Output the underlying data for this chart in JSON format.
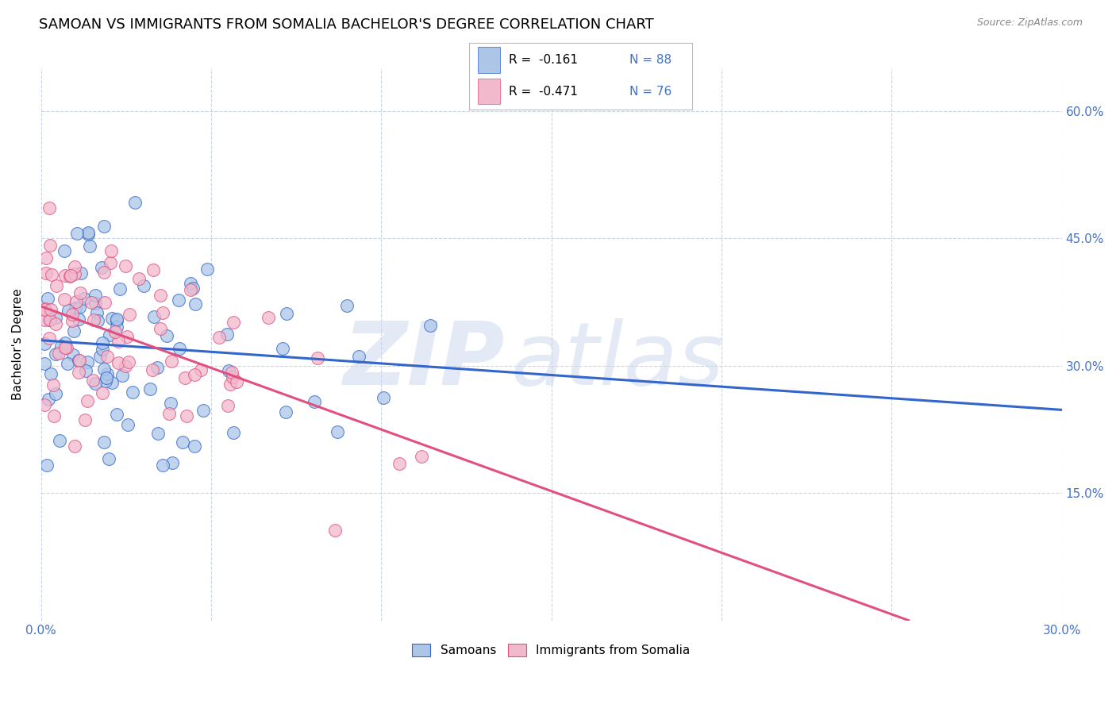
{
  "title": "SAMOAN VS IMMIGRANTS FROM SOMALIA BACHELOR'S DEGREE CORRELATION CHART",
  "source": "Source: ZipAtlas.com",
  "ylabel": "Bachelor's Degree",
  "xlim": [
    0.0,
    0.3
  ],
  "ylim": [
    0.0,
    0.65
  ],
  "yticks": [
    0.15,
    0.3,
    0.45,
    0.6
  ],
  "ytick_labels": [
    "15.0%",
    "30.0%",
    "45.0%",
    "60.0%"
  ],
  "xticks": [
    0.0,
    0.05,
    0.1,
    0.15,
    0.2,
    0.25,
    0.3
  ],
  "legend_R1": "R =  -0.161",
  "legend_N1": "N = 88",
  "legend_R2": "R =  -0.471",
  "legend_N2": "N = 76",
  "color_blue": "#adc6e8",
  "color_pink": "#f2b8cc",
  "color_blue_line": "#3366cc",
  "color_pink_line": "#e05080",
  "color_blue_text": "#4472c4",
  "title_fontsize": 13,
  "source_fontsize": 9,
  "blue_line_x": [
    0.0,
    0.3
  ],
  "blue_line_y": [
    0.33,
    0.248
  ],
  "pink_line_x": [
    0.0,
    0.255
  ],
  "pink_line_y": [
    0.37,
    0.0
  ]
}
